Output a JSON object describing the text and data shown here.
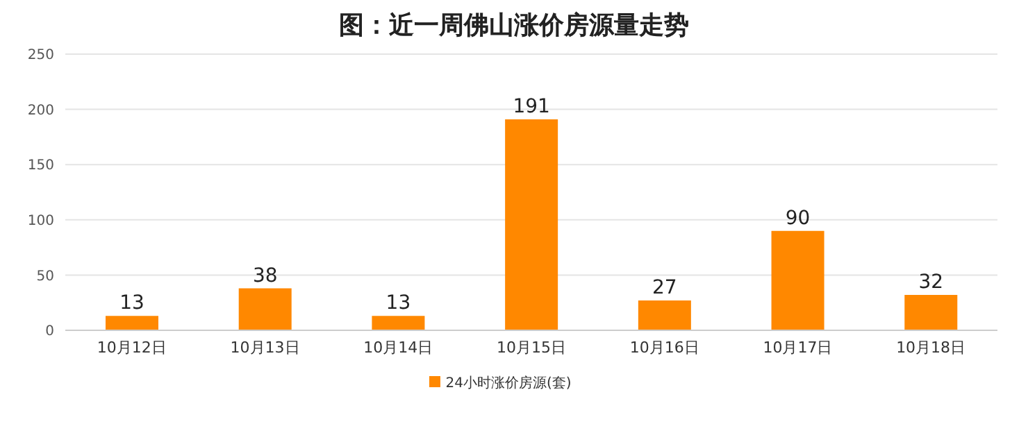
{
  "chart_data": {
    "type": "bar",
    "title": "图：近一周佛山涨价房源量走势",
    "categories": [
      "10月12日",
      "10月13日",
      "10月14日",
      "10月15日",
      "10月16日",
      "10月17日",
      "10月18日"
    ],
    "series": [
      {
        "name": "24小时涨价房源(套)",
        "color": "#ff8800",
        "values": [
          13,
          38,
          13,
          191,
          27,
          90,
          32
        ]
      }
    ],
    "ylim": [
      0,
      250
    ],
    "yticks": [
      0,
      50,
      100,
      150,
      200,
      250
    ],
    "grid": "y",
    "legend": "bottom",
    "data_labels": true
  }
}
